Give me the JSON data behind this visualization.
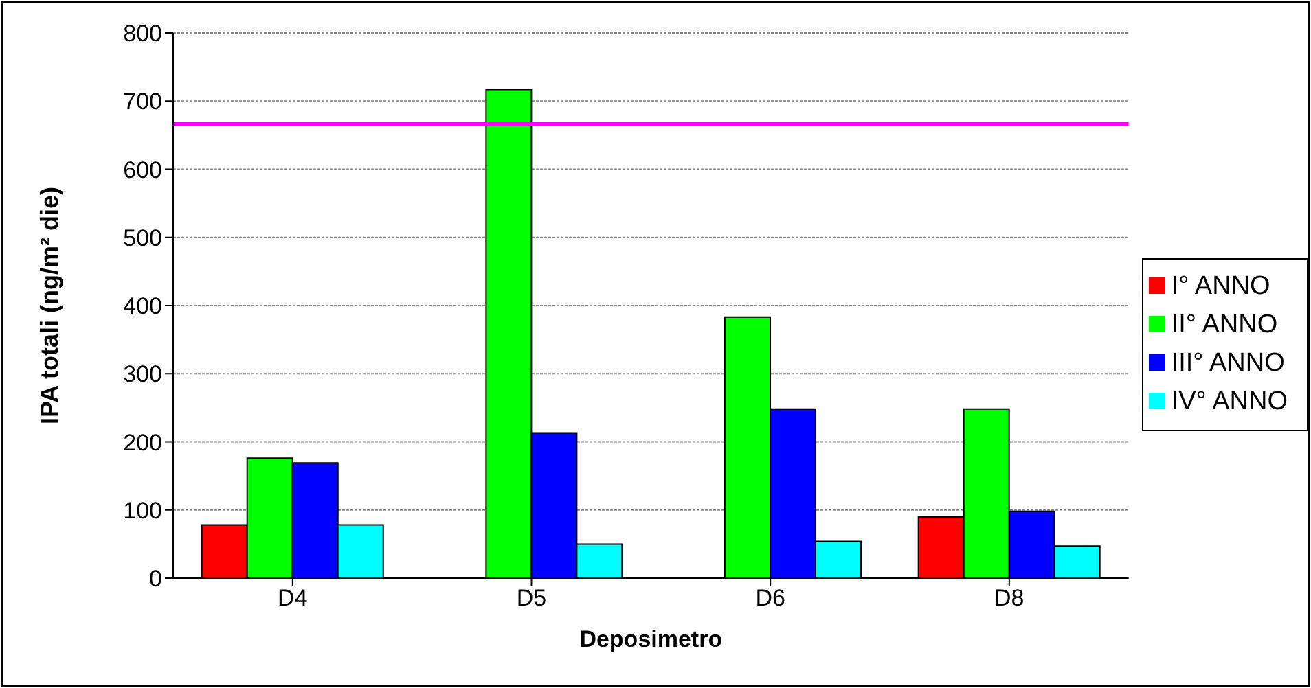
{
  "chart_data": {
    "type": "bar",
    "xlabel": "Deposimetro",
    "ylabel": "IPA totali (ng/m² die)",
    "categories": [
      "D4",
      "D5",
      "D6",
      "D8"
    ],
    "series": [
      {
        "name": "I° ANNO",
        "color": "#ff0000",
        "values": [
          78,
          null,
          null,
          90
        ]
      },
      {
        "name": "II° ANNO",
        "color": "#00ff00",
        "values": [
          176,
          717,
          383,
          248
        ]
      },
      {
        "name": "III° ANNO",
        "color": "#0000ff",
        "values": [
          169,
          213,
          248,
          98
        ]
      },
      {
        "name": "IV° ANNO",
        "color": "#00ffff",
        "values": [
          78,
          50,
          54,
          47
        ]
      }
    ],
    "ylim": [
      0,
      800
    ],
    "yticks": [
      0,
      100,
      200,
      300,
      400,
      500,
      600,
      700,
      800
    ],
    "ref_lines": [
      {
        "axis": "y",
        "value": 667,
        "color": "#ff00ff"
      }
    ],
    "grid": "y",
    "legend": "right"
  }
}
